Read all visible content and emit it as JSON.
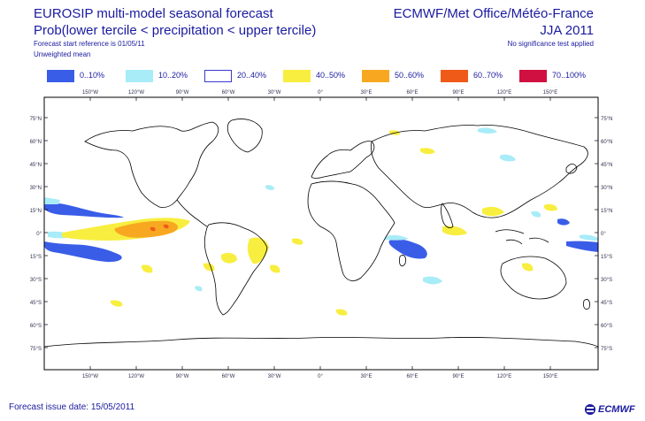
{
  "header": {
    "title_line1": "EUROSIP multi-model seasonal forecast",
    "title_line2": "Prob(lower tercile < precipitation < upper tercile)",
    "forecast_start": "Forecast start reference is 01/05/11",
    "weighting": "Unweighted mean",
    "organisations": "ECMWF/Met Office/Météo-France",
    "season": "JJA 2011",
    "significance_note": "No significance test applied"
  },
  "legend": [
    {
      "label": "0..10%",
      "color": "#3a5de8",
      "outline": false
    },
    {
      "label": "10..20%",
      "color": "#a8ecf8",
      "outline": false
    },
    {
      "label": "20..40%",
      "color": "#ffffff",
      "outline": true
    },
    {
      "label": "40..50%",
      "color": "#f8ee40",
      "outline": false
    },
    {
      "label": "50..60%",
      "color": "#f8a820",
      "outline": false
    },
    {
      "label": "60..70%",
      "color": "#f05a18",
      "outline": false
    },
    {
      "label": "70..100%",
      "color": "#d01040",
      "outline": false
    }
  ],
  "map": {
    "lon_ticks": [
      "150°W",
      "120°W",
      "90°W",
      "60°W",
      "30°W",
      "0°",
      "30°E",
      "60°E",
      "90°E",
      "120°E",
      "150°E"
    ],
    "lat_ticks": [
      "75°N",
      "60°N",
      "45°N",
      "30°N",
      "15°N",
      "0°",
      "15°S",
      "30°S",
      "45°S",
      "60°S",
      "75°S"
    ],
    "coastline_color": "#000000",
    "frame_color": "#000000"
  },
  "footer": {
    "issue_date": "Forecast issue date: 15/05/2011",
    "logo_text": "ECMWF"
  }
}
